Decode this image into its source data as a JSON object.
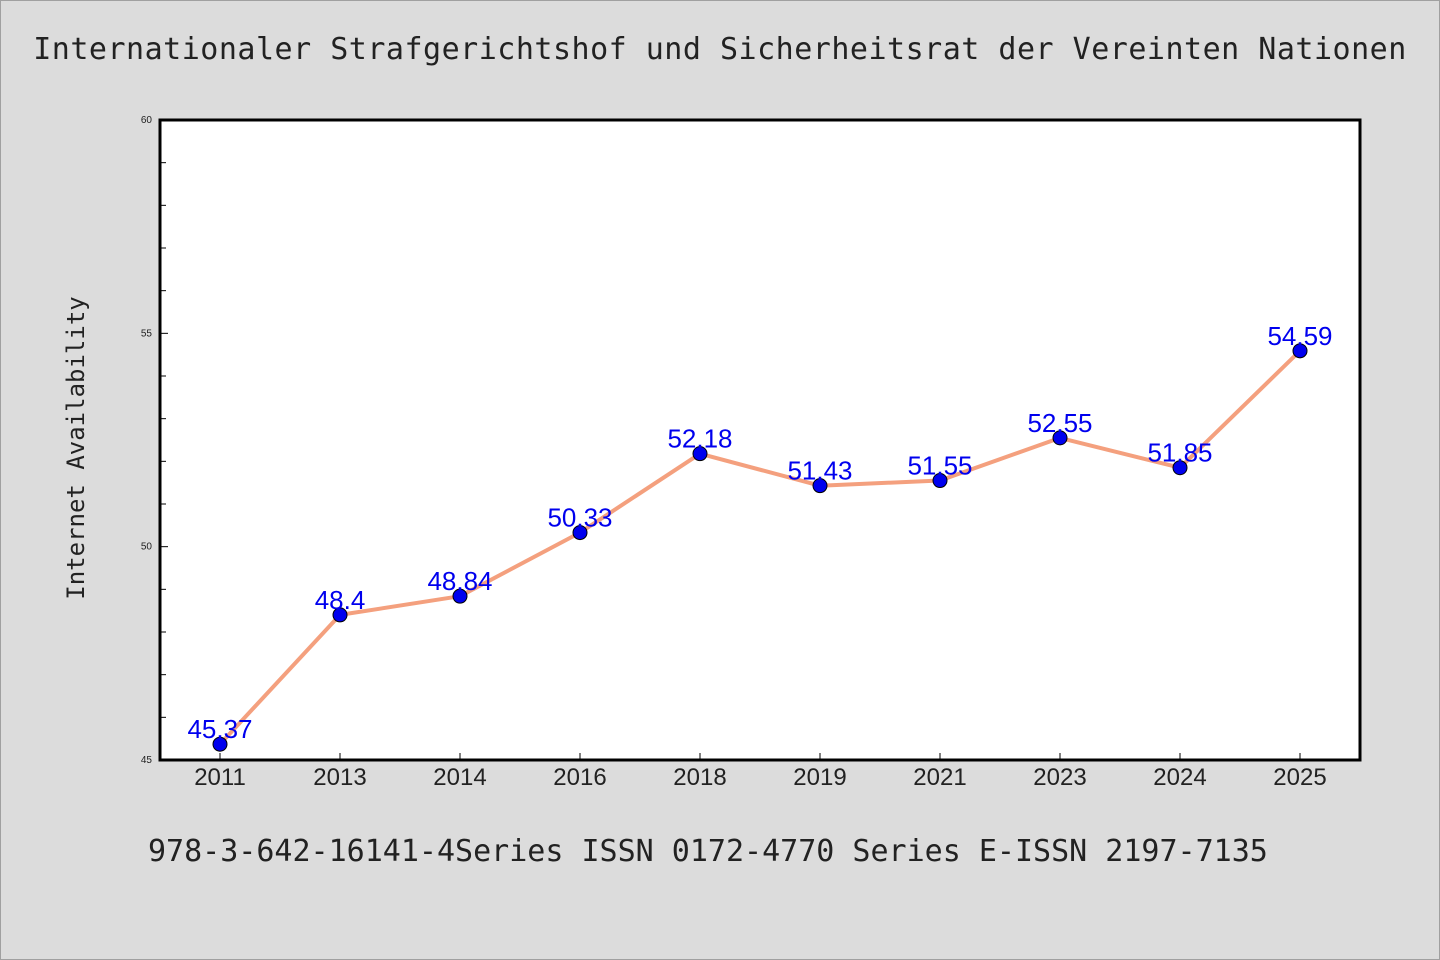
{
  "title": "Internationaler Strafgerichtshof und Sicherheitsrat der Vereinten Nationen",
  "footer": "978-3-642-16141-4Series ISSN 0172-4770 Series E-ISSN 2197-7135",
  "colors": {
    "background": "#dcdcdc",
    "plot_background": "#ffffff",
    "line": "#f4a07e",
    "marker": "#0000ee",
    "data_label": "#0000ee"
  },
  "chart_data": {
    "type": "line",
    "title": "Internationaler Strafgerichtshof und Sicherheitsrat der Vereinten Nationen",
    "xlabel": "",
    "ylabel": "Internet Availability",
    "categories": [
      "2011",
      "2013",
      "2014",
      "2016",
      "2018",
      "2019",
      "2021",
      "2023",
      "2024",
      "2025"
    ],
    "series": [
      {
        "values": [
          45.37,
          48.4,
          48.84,
          50.33,
          52.18,
          51.43,
          51.55,
          52.55,
          51.85,
          54.59
        ],
        "labels": [
          "45.37",
          "48.4",
          "48.84",
          "50.33",
          "52.18",
          "51.43",
          "51.55",
          "52.55",
          "51.85",
          "54.59"
        ]
      }
    ],
    "ylim": [
      45,
      60
    ],
    "yticks": [
      45,
      50,
      55,
      60
    ],
    "ytick_labels": [
      "45",
      "50",
      "55",
      "60"
    ],
    "grid": false,
    "legend": "none"
  }
}
